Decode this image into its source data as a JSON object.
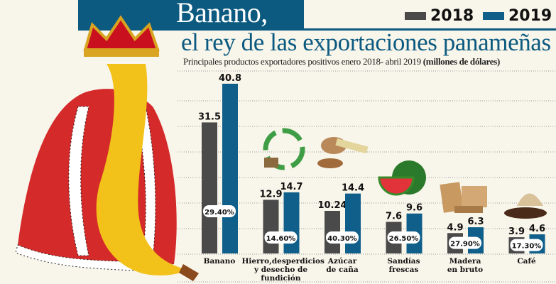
{
  "header": {
    "title": "Banano,",
    "subtitle": "el rey de las exportaciones panameñas",
    "description": "Principales productos exportadores positivos enero 2018- abril 2019",
    "unit": "(millones de dólares)"
  },
  "chart_data": {
    "type": "bar",
    "title": "Banano, el rey de las exportaciones panameñas",
    "ylabel": "millones de dólares",
    "categories": [
      "Banano",
      "Hierro,desperdicios y desecho de fundición",
      "Azúcar de caña",
      "Sandías frescas",
      "Madera en bruto",
      "Café"
    ],
    "category_lines": [
      [
        "Banano"
      ],
      [
        "Hierro,desperdicios",
        "y desecho de",
        "fundición"
      ],
      [
        "Azúcar",
        "de caña"
      ],
      [
        "Sandías",
        "frescas"
      ],
      [
        "Madera",
        "en bruto"
      ],
      [
        "Café"
      ]
    ],
    "series": [
      {
        "name": "2018",
        "color": "#4a4a4a",
        "values": [
          31.5,
          12.9,
          10.24,
          7.6,
          4.9,
          3.9
        ],
        "labels": [
          "31.5",
          "12.9",
          "10.24",
          "7.6",
          "4.9",
          "3.9"
        ]
      },
      {
        "name": "2019",
        "color": "#0f5f8a",
        "values": [
          40.8,
          14.7,
          14.4,
          9.6,
          6.3,
          4.6
        ],
        "labels": [
          "40.8",
          "14.7",
          "14.4",
          "9.6",
          "6.3",
          "4.6"
        ]
      }
    ],
    "growth_labels": [
      "29.40%",
      "14.60%",
      "40.30%",
      "26.50%",
      "27.90%",
      "17.30%"
    ],
    "ylim": [
      0,
      45
    ],
    "grid": true,
    "legend": "top-right"
  },
  "colors": {
    "brand_blue": "#0c5a80",
    "background": "#f8f5ea"
  }
}
